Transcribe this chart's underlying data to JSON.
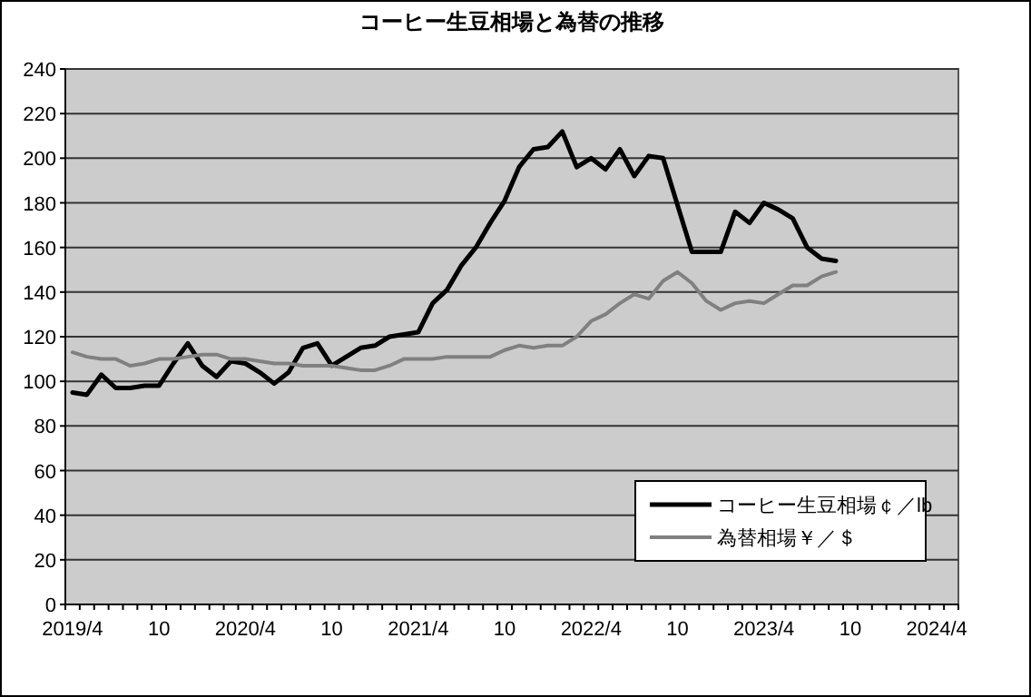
{
  "chart_data": {
    "type": "line",
    "title": "コーヒー生豆相場と為替の推移",
    "categories": [
      "2019/4",
      null,
      null,
      null,
      null,
      null,
      "10",
      null,
      null,
      null,
      null,
      null,
      "2020/4",
      null,
      null,
      null,
      null,
      null,
      "10",
      null,
      null,
      null,
      null,
      null,
      "2021/4",
      null,
      null,
      null,
      null,
      null,
      "10",
      null,
      null,
      null,
      null,
      null,
      "2022/4",
      null,
      null,
      null,
      null,
      null,
      "10",
      null,
      null,
      null,
      null,
      null,
      "2023/4",
      null,
      null,
      null,
      null,
      null,
      "10",
      null,
      null,
      null,
      null,
      null,
      "2024/4",
      null
    ],
    "series": [
      {
        "name": "コーヒー生豆相場￠／lb",
        "color": "#000000",
        "values": [
          95,
          94,
          103,
          97,
          97,
          98,
          98,
          108,
          117,
          107,
          102,
          109,
          108,
          104,
          99,
          104,
          115,
          117,
          107,
          111,
          115,
          116,
          120,
          121,
          122,
          135,
          141,
          152,
          160,
          171,
          181,
          196,
          204,
          205,
          212,
          196,
          200,
          195,
          204,
          192,
          201,
          200,
          179,
          158,
          158,
          158,
          176,
          171,
          180,
          177,
          173,
          160,
          155,
          154,
          null,
          null,
          null,
          null,
          null,
          null,
          null,
          null
        ]
      },
      {
        "name": "為替相場￥／＄",
        "color": "#808080",
        "values": [
          113,
          111,
          110,
          110,
          107,
          108,
          110,
          110,
          111,
          112,
          112,
          110,
          110,
          109,
          108,
          108,
          107,
          107,
          107,
          106,
          105,
          105,
          107,
          110,
          110,
          110,
          111,
          111,
          111,
          111,
          114,
          116,
          115,
          116,
          116,
          120,
          127,
          130,
          135,
          139,
          137,
          145,
          149,
          144,
          136,
          132,
          135,
          136,
          135,
          139,
          143,
          143,
          147,
          149,
          null,
          null,
          null,
          null,
          null,
          null,
          null,
          null
        ]
      }
    ],
    "ylim": [
      0,
      240
    ],
    "yticks": [
      0,
      20,
      40,
      60,
      80,
      100,
      120,
      140,
      160,
      180,
      200,
      220,
      240
    ],
    "grid": "y",
    "legend": "bottom right",
    "marker": "none",
    "line_style": "solid"
  }
}
